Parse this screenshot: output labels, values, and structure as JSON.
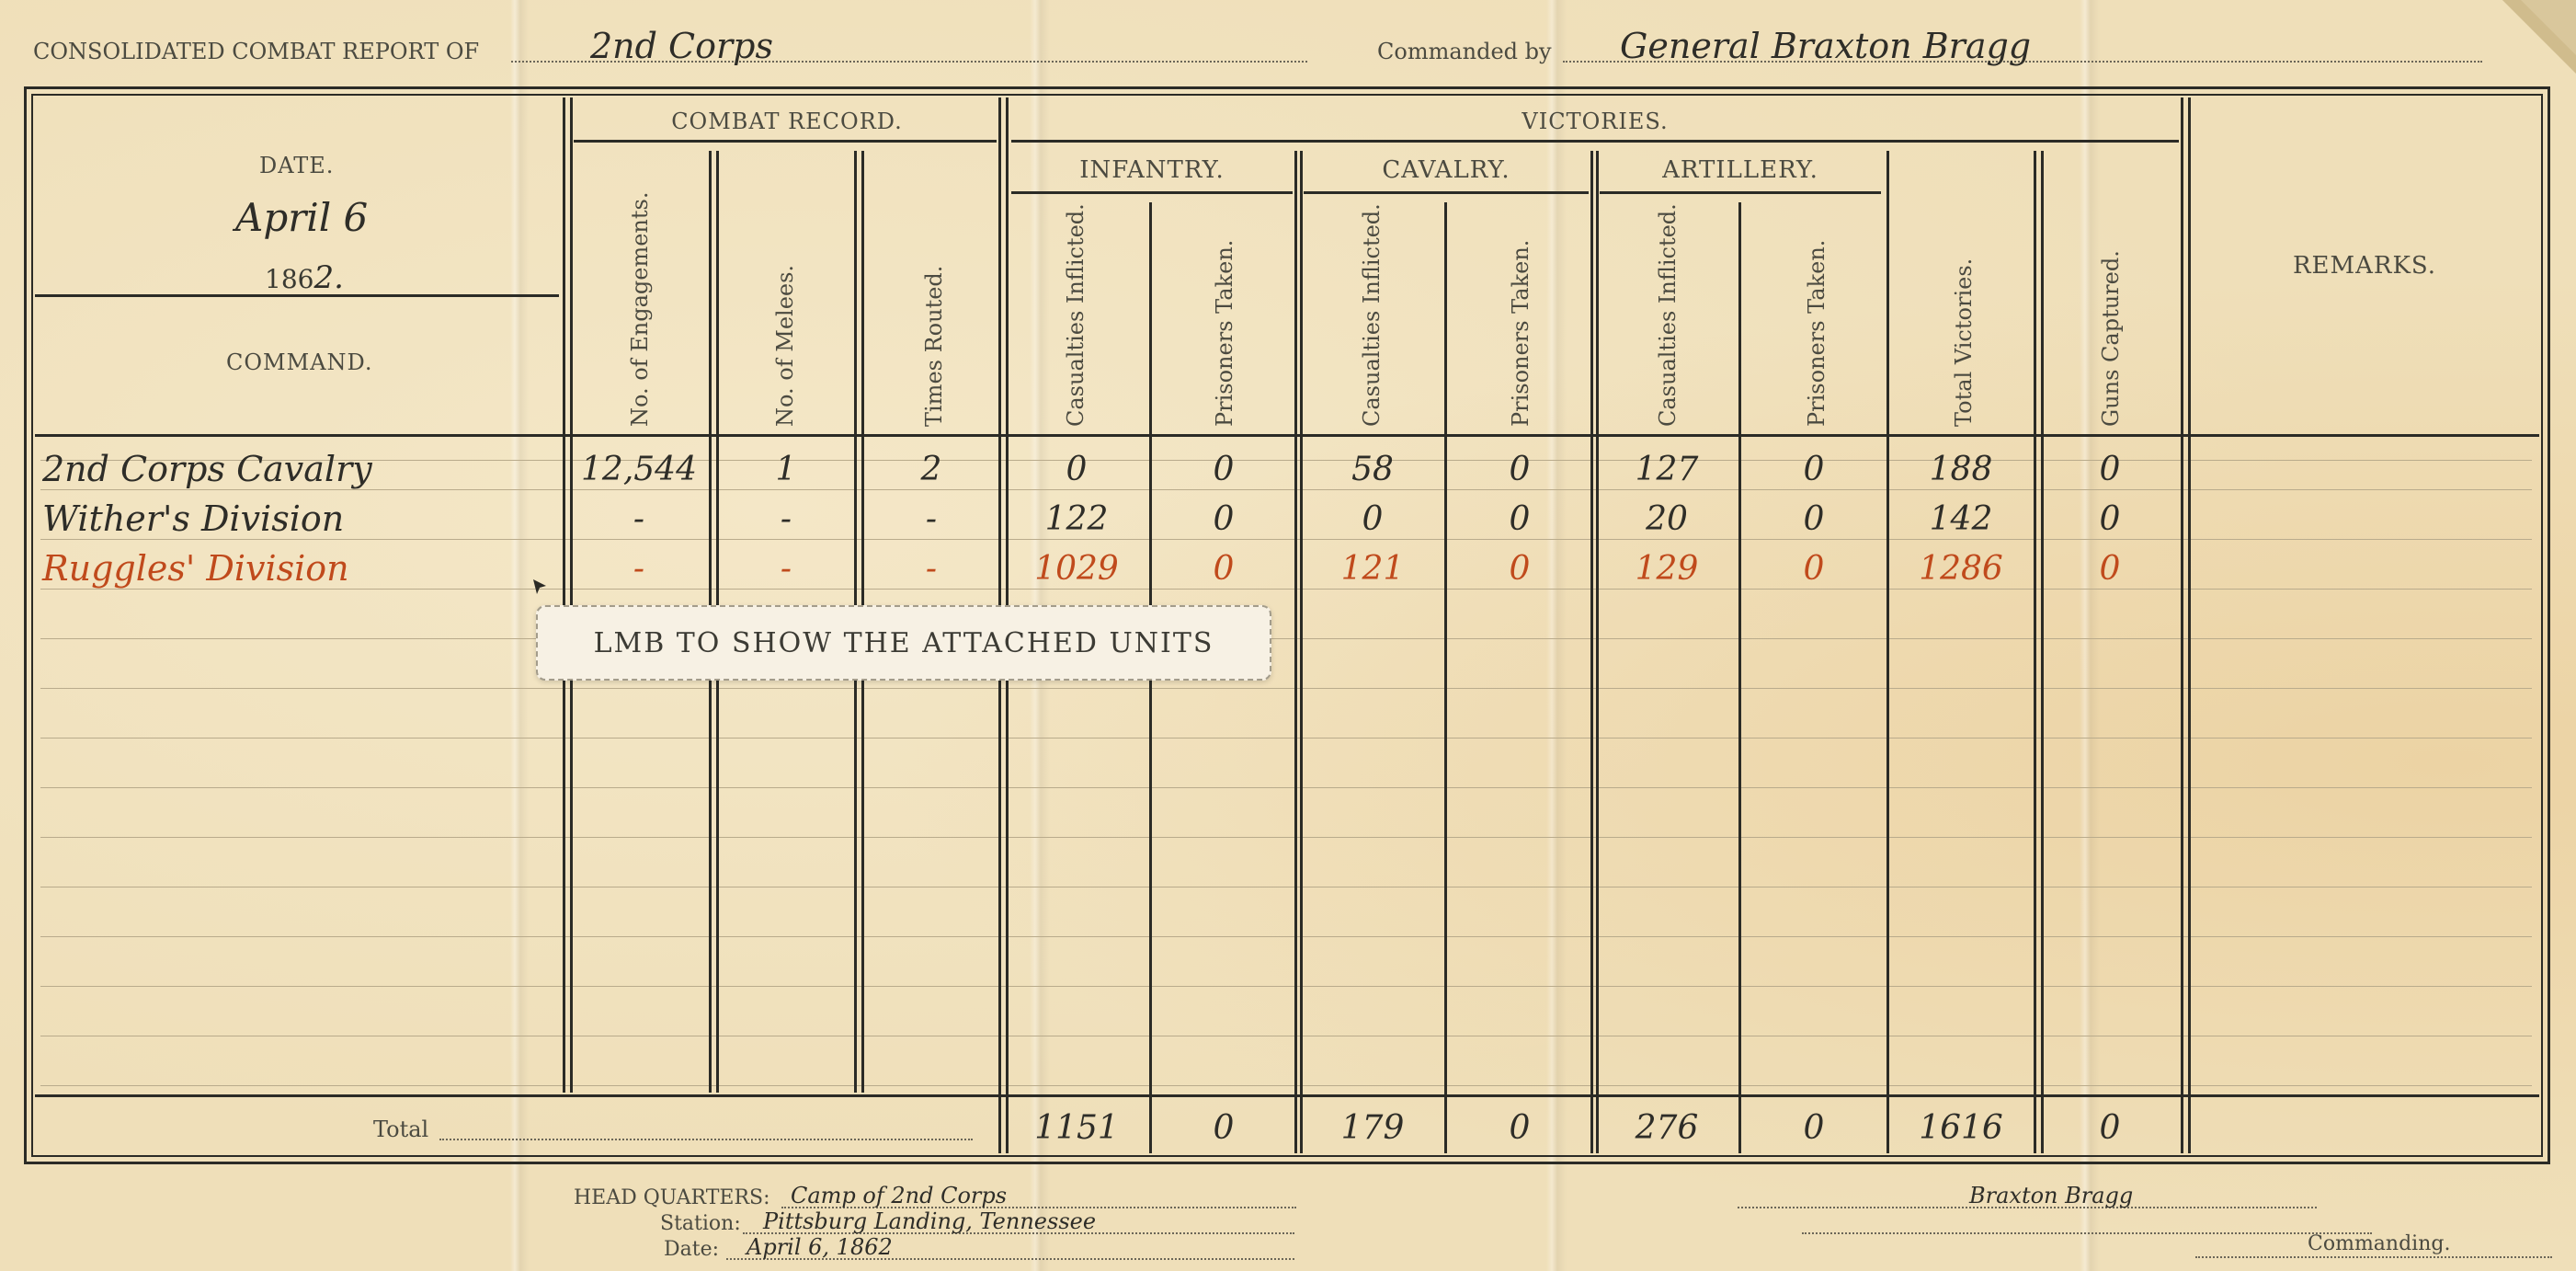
{
  "header": {
    "report_label": "CONSOLIDATED COMBAT REPORT of",
    "unit": "2nd Corps",
    "commanded_label": "Commanded by",
    "commander": "General Braxton Bragg"
  },
  "date_block": {
    "date_label": "DATE.",
    "date": "April 6",
    "year_prefix": "186",
    "year_suffix": "2.",
    "command_label": "COMMAND."
  },
  "groups": {
    "combat_record": "COMBAT RECORD.",
    "victories": "VICTORIES.",
    "infantry": "INFANTRY.",
    "cavalry": "CAVALRY.",
    "artillery": "ARTILLERY.",
    "remarks": "REMARKS."
  },
  "columns": [
    "No. of Engagements.",
    "No. of Melees.",
    "Times Routed.",
    "Casualties Inflicted.",
    "Prisoners Taken.",
    "Casualties Inflicted.",
    "Prisoners Taken.",
    "Casualties Inflicted.",
    "Prisoners Taken.",
    "Total Victories.",
    "Guns Captured."
  ],
  "rows": [
    {
      "name": "2nd Corps Cavalry",
      "values": [
        "12,544",
        "1",
        "2",
        "0",
        "0",
        "58",
        "0",
        "127",
        "0",
        "188",
        "0"
      ]
    },
    {
      "name": "Wither's Division",
      "values": [
        "-",
        "-",
        "-",
        "122",
        "0",
        "0",
        "0",
        "20",
        "0",
        "142",
        "0"
      ]
    },
    {
      "name": "Ruggles' Division",
      "values": [
        "-",
        "-",
        "-",
        "1029",
        "0",
        "121",
        "0",
        "129",
        "0",
        "1286",
        "0"
      ]
    }
  ],
  "total": {
    "label": "Total",
    "values": [
      "1151",
      "0",
      "179",
      "0",
      "276",
      "0",
      "1616",
      "0"
    ]
  },
  "tooltip": "LMB TO SHOW THE ATTACHED UNITS",
  "footer": {
    "hq_label": "HEAD QUARTERS:",
    "hq_value": "Camp of 2nd Corps",
    "station_label": "Station:",
    "station_value": "Pittsburg Landing, Tennessee",
    "date_label": "Date:",
    "date_value": "April 6, 1862",
    "signature": "Braxton Bragg",
    "commanding": "Commanding."
  },
  "colors": {
    "highlight": "#c04a1c",
    "ink": "#2b2b26",
    "paper": "#efdfb9"
  }
}
